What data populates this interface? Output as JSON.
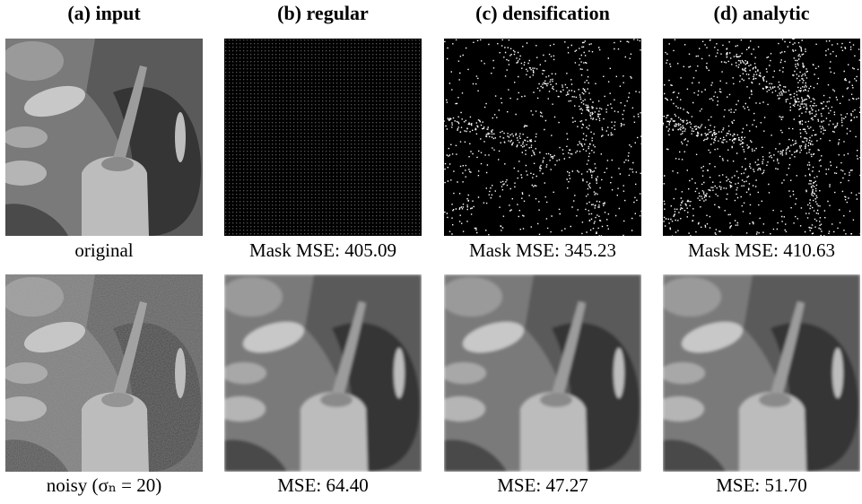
{
  "columns": [
    {
      "header": "(a) input",
      "top_caption": "original",
      "bottom_caption": "noisy (σₙ = 20)"
    },
    {
      "header": "(b) regular",
      "top_caption": "Mask MSE: 405.09",
      "bottom_caption": "MSE: 64.40"
    },
    {
      "header": "(c) densification",
      "top_caption": "Mask MSE: 345.23",
      "bottom_caption": "MSE: 47.27"
    },
    {
      "header": "(d) analytic",
      "top_caption": "Mask MSE: 410.63",
      "bottom_caption": "MSE: 51.70"
    }
  ]
}
